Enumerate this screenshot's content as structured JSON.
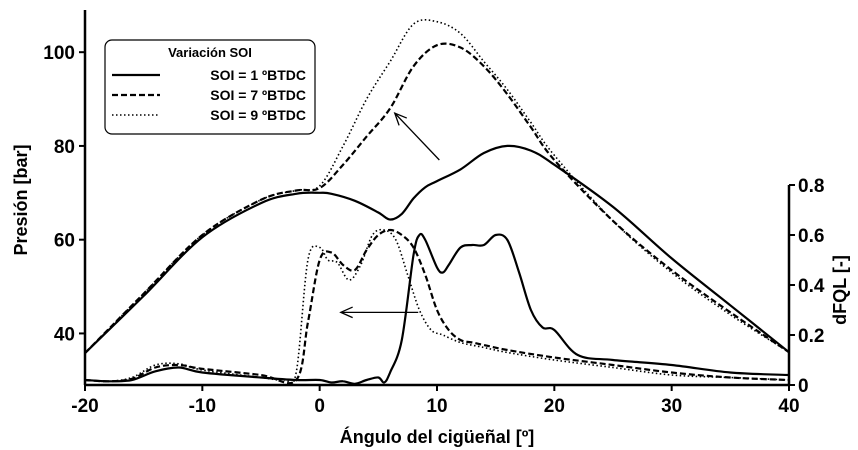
{
  "chart_data": {
    "type": "line",
    "xlabel": "Ángulo del cigüeñal [º]",
    "ylabel_left": "Presión [bar]",
    "ylabel_right": "dFQL [-]",
    "xlim": [
      -20,
      40
    ],
    "ylim_left": [
      29,
      109
    ],
    "ylim_right": [
      0,
      0.8
    ],
    "x_ticks": [
      -20,
      -10,
      0,
      10,
      20,
      30,
      40
    ],
    "y_left_ticks": [
      40,
      60,
      80,
      100
    ],
    "y_right_ticks": [
      0,
      0.2,
      0.4,
      0.6,
      0.8
    ],
    "y_right_tick_labels": [
      "0",
      "0.2",
      "0.4",
      "0.6",
      "0.8"
    ],
    "legend": {
      "title": "Variación SOI",
      "position": "top-left",
      "entries": [
        "SOI = 1 ºBTDC",
        "SOI = 7 ºBTDC",
        "SOI = 9 ºBTDC"
      ]
    },
    "series": [
      {
        "name": "SOI = 1 ºBTDC",
        "axis": "left",
        "style": "solid",
        "x": [
          -20,
          -15,
          -10,
          -5,
          -2,
          0,
          1,
          3,
          5,
          6,
          7,
          8,
          9,
          10,
          12,
          14,
          16,
          18,
          20,
          25,
          30,
          35,
          40
        ],
        "y": [
          35.8,
          48,
          60.5,
          67.8,
          69.8,
          70,
          69.8,
          68.3,
          65.8,
          64.3,
          65.5,
          68.8,
          71.2,
          72.5,
          75,
          78.5,
          80,
          79,
          76,
          67,
          56,
          46,
          36
        ]
      },
      {
        "name": "SOI = 7 ºBTDC",
        "axis": "left",
        "style": "dashed",
        "x": [
          -20,
          -15,
          -10,
          -5,
          -2,
          0,
          2,
          4,
          6,
          8,
          10,
          12,
          14,
          16,
          18,
          20,
          25,
          30,
          35,
          40
        ],
        "y": [
          35.8,
          48.5,
          61,
          68.5,
          70.5,
          71,
          76,
          82,
          88,
          97,
          101.5,
          101,
          97,
          91,
          84,
          77,
          64,
          53.5,
          44.5,
          36
        ]
      },
      {
        "name": "SOI = 9 ºBTDC",
        "axis": "left",
        "style": "dotted",
        "x": [
          -20,
          -15,
          -10,
          -5,
          -2,
          0,
          2,
          4,
          6,
          8,
          10,
          12,
          14,
          16,
          18,
          20,
          25,
          30,
          35,
          40
        ],
        "y": [
          35.8,
          48.5,
          61,
          68.5,
          70.5,
          71.5,
          80,
          90,
          98,
          106,
          106.5,
          104,
          98,
          92,
          85,
          78,
          64,
          53,
          44,
          36
        ]
      },
      {
        "name": "SOI = 1 ºBTDC",
        "axis": "right",
        "style": "solid",
        "x": [
          -20,
          -18,
          -16,
          -14,
          -12,
          -10,
          -5,
          -2,
          0,
          1,
          2,
          3,
          4,
          5,
          5.5,
          6,
          7,
          8,
          8.5,
          9,
          10,
          10.5,
          11,
          12,
          13,
          14,
          15,
          16,
          17,
          18,
          19,
          20,
          22,
          25,
          30,
          35,
          40
        ],
        "y": [
          0.02,
          0.015,
          0.02,
          0.055,
          0.07,
          0.05,
          0.03,
          0.02,
          0.02,
          0.01,
          0.015,
          0.005,
          0.02,
          0.03,
          0.01,
          0.05,
          0.18,
          0.52,
          0.6,
          0.58,
          0.47,
          0.45,
          0.48,
          0.55,
          0.56,
          0.56,
          0.6,
          0.58,
          0.45,
          0.3,
          0.23,
          0.22,
          0.12,
          0.1,
          0.08,
          0.05,
          0.04
        ]
      },
      {
        "name": "SOI = 7 ºBTDC",
        "axis": "right",
        "style": "dashed",
        "x": [
          -20,
          -18,
          -16,
          -14,
          -12,
          -10,
          -5,
          -2,
          -1,
          0,
          1,
          2,
          3,
          4,
          5,
          6,
          7,
          8,
          9,
          10,
          11,
          12,
          13,
          14,
          16,
          20,
          25,
          30,
          35,
          40
        ],
        "y": [
          0.02,
          0.015,
          0.025,
          0.07,
          0.08,
          0.065,
          0.04,
          0.02,
          0.25,
          0.5,
          0.53,
          0.48,
          0.46,
          0.54,
          0.6,
          0.62,
          0.6,
          0.55,
          0.44,
          0.3,
          0.22,
          0.18,
          0.17,
          0.16,
          0.14,
          0.11,
          0.08,
          0.05,
          0.03,
          0.02
        ]
      },
      {
        "name": "SOI = 9 ºBTDC",
        "axis": "right",
        "style": "dotted",
        "x": [
          -20,
          -18,
          -16,
          -14,
          -12,
          -10,
          -5,
          -3,
          -2,
          -1,
          0,
          0.7,
          1.5,
          2.5,
          3.5,
          4.5,
          5.5,
          6.5,
          7.5,
          8.5,
          9.5,
          10.5,
          12,
          14,
          16,
          20,
          25,
          30,
          35,
          40
        ],
        "y": [
          0.02,
          0.015,
          0.03,
          0.08,
          0.085,
          0.06,
          0.03,
          0.02,
          0.05,
          0.5,
          0.55,
          0.5,
          0.49,
          0.42,
          0.48,
          0.6,
          0.62,
          0.58,
          0.44,
          0.3,
          0.22,
          0.2,
          0.17,
          0.15,
          0.13,
          0.1,
          0.07,
          0.04,
          0.03,
          0.02
        ]
      }
    ],
    "annotations": [
      {
        "type": "arrow",
        "axis": "left",
        "from": [
          10.2,
          77
        ],
        "to": [
          6.4,
          87
        ]
      },
      {
        "type": "arrow",
        "axis": "left",
        "from": [
          8.4,
          44.5
        ],
        "to": [
          1.8,
          44.5
        ]
      }
    ]
  }
}
